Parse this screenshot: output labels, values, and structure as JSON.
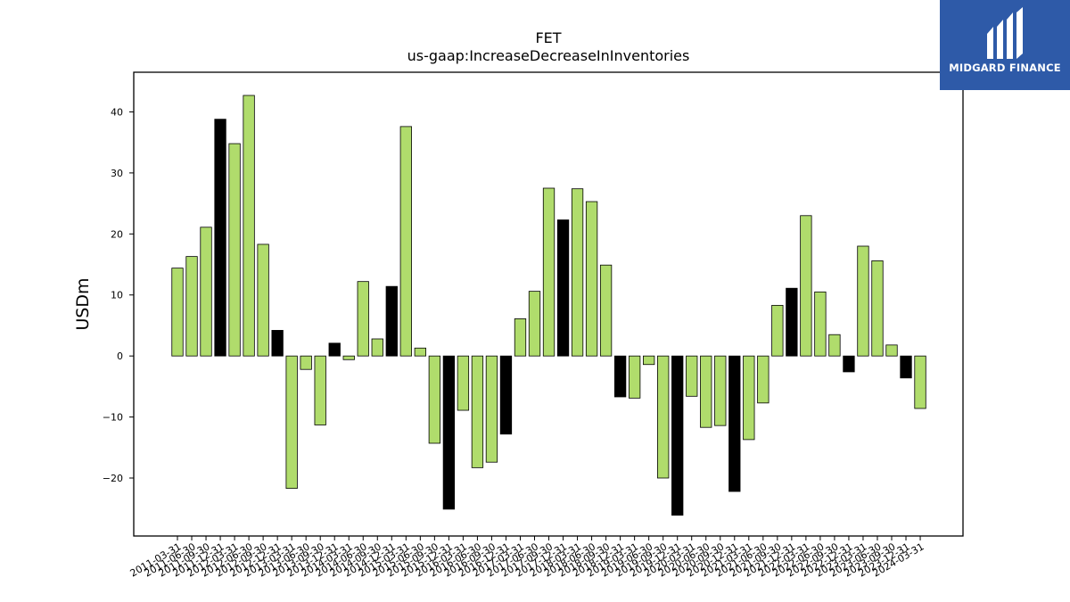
{
  "logo": {
    "text": "MIDGARD FINANCE",
    "icon": "midgard-logo-icon",
    "background": "#2e5aa8"
  },
  "colors": {
    "positive": "#b0dc6c",
    "highlight": "#000000",
    "edge": "#000000"
  },
  "chart_data": {
    "type": "bar",
    "title": "FET",
    "subtitle": "us-gaap:IncreaseDecreaseInInventories",
    "ylabel": "USDm",
    "xlabel": "",
    "ylim": [
      -29.5,
      46.5
    ],
    "yticks": [
      -20,
      -10,
      0,
      10,
      20,
      30,
      40
    ],
    "ytick_labels": [
      "−20",
      "−10",
      "0",
      "10",
      "20",
      "30",
      "40"
    ],
    "grid": false,
    "categories": [
      "2011-03-31",
      "2011-06-30",
      "2011-09-30",
      "2011-12-31",
      "2012-03-31",
      "2012-06-30",
      "2012-09-30",
      "2012-12-31",
      "2013-03-31",
      "2013-06-30",
      "2013-09-30",
      "2013-12-31",
      "2014-03-31",
      "2014-06-30",
      "2014-09-30",
      "2014-12-31",
      "2015-03-31",
      "2015-06-30",
      "2015-09-30",
      "2015-12-31",
      "2016-03-31",
      "2016-06-30",
      "2016-09-30",
      "2016-12-31",
      "2017-03-31",
      "2017-06-30",
      "2017-09-30",
      "2017-12-31",
      "2018-03-31",
      "2018-06-30",
      "2018-09-30",
      "2018-12-31",
      "2019-03-31",
      "2019-06-30",
      "2019-09-30",
      "2019-12-31",
      "2020-03-31",
      "2020-06-30",
      "2020-09-30",
      "2020-12-31",
      "2021-03-31",
      "2021-06-30",
      "2021-09-30",
      "2021-12-31",
      "2022-03-31",
      "2022-06-30",
      "2022-09-30",
      "2022-12-31",
      "2023-03-31",
      "2023-06-30",
      "2023-09-30",
      "2023-12-31",
      "2024-03-31"
    ],
    "values": [
      14.4,
      16.3,
      21.1,
      38.8,
      34.8,
      42.7,
      18.3,
      4.2,
      -21.7,
      -2.2,
      -11.3,
      2.1,
      -0.6,
      12.2,
      2.8,
      11.4,
      37.6,
      1.3,
      -14.3,
      -25.1,
      -8.9,
      -18.3,
      -17.4,
      -12.8,
      6.1,
      10.6,
      27.5,
      22.3,
      27.4,
      25.3,
      14.9,
      -6.7,
      -6.9,
      -1.4,
      -20.0,
      -26.1,
      -6.6,
      -11.7,
      -11.4,
      -22.2,
      -13.7,
      -7.7,
      8.3,
      11.1,
      23.0,
      10.5,
      3.5,
      -2.6,
      18.0,
      15.6,
      1.8,
      -3.6,
      -8.6
    ],
    "highlight": [
      false,
      false,
      false,
      true,
      false,
      false,
      false,
      true,
      false,
      false,
      false,
      true,
      false,
      false,
      false,
      true,
      false,
      false,
      false,
      true,
      false,
      false,
      false,
      true,
      false,
      false,
      false,
      true,
      false,
      false,
      false,
      true,
      false,
      false,
      false,
      true,
      false,
      false,
      false,
      true,
      false,
      false,
      false,
      true,
      false,
      false,
      false,
      true,
      false,
      false,
      false,
      true,
      false
    ]
  }
}
